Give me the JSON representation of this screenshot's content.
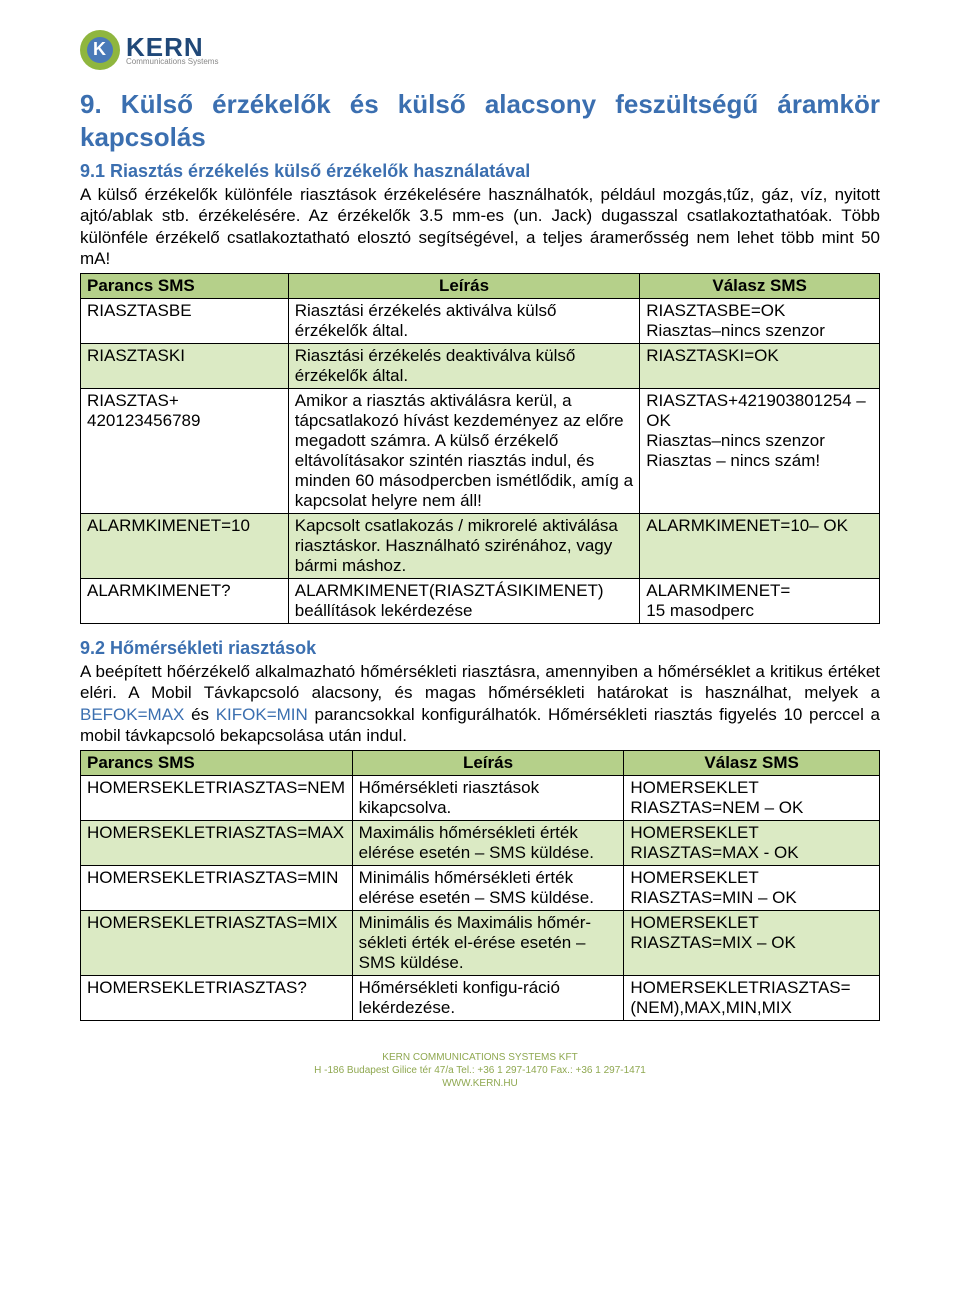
{
  "logo": {
    "name": "KERN",
    "tagline": "Communications Systems"
  },
  "section9": {
    "title": "9. Külső érzékelők és külső alacsony feszültségű áramkör kapcsolás",
    "sub1_title": "9.1 Riasztás érzékelés külső érzékelők használatával",
    "sub1_text": "A külső érzékelők különféle riasztások érzékelésére használhatók, például mozgás,tűz, gáz, víz, nyitott ajtó/ablak stb. érzékelésére. Az érzékelők 3.5 mm-es (un. Jack) dugasszal csatlakoztathatóak. Több különféle érzékelő csatlakoztatható elosztó segítségével, a teljes áramerősség nem lehet több mint 50 mA!",
    "table1": {
      "headers": [
        "Parancs SMS",
        "Leírás",
        "Válasz SMS"
      ],
      "col_widths": [
        "26%",
        "44%",
        "30%"
      ],
      "header_bg": "#b5d08a",
      "row_alt_bg": "#dbeac4",
      "rows": [
        {
          "cmd": "RIASZTASBE",
          "desc": "Riasztási érzékelés aktiválva külső érzékelők által.",
          "resp": "RIASZTASBE=OK\nRiasztas–nincs szenzor",
          "alt": false
        },
        {
          "cmd": "RIASZTASKI",
          "desc": "Riasztási érzékelés deaktiválva külső érzékelők által.",
          "resp": "RIASZTASKI=OK",
          "alt": true
        },
        {
          "cmd": "RIASZTAS+\n420123456789",
          "desc": "Amikor a riasztás aktiválásra kerül, a tápcsatlakozó hívást kezdeményez az előre megadott számra. A külső érzékelő eltávolításakor szintén riasztás indul, és minden 60 másodpercben ismétlődik, amíg a kapcsolat helyre nem áll!",
          "resp": "RIASZTAS+421903801254 – OK\nRiasztas–nincs szenzor\nRiasztas – nincs szám!",
          "alt": false
        },
        {
          "cmd": "ALARMKIMENET=10",
          "desc": "Kapcsolt csatlakozás / mikrorelé aktiválása riasztáskor. Használható szirénához, vagy bármi máshoz.",
          "resp": "ALARMKIMENET=10– OK",
          "alt": true
        },
        {
          "cmd": "ALARMKIMENET?",
          "desc": "ALARMKIMENET(RIASZTÁSIKIMENET) beállítások lekérdezése",
          "resp": "ALARMKIMENET=\n15 masodperc",
          "alt": false
        }
      ]
    },
    "sub2_title": "9.2 Hőmérsékleti riasztások",
    "sub2_text_a": "A beépített hőérzékelő alkalmazható hőmérsékleti riasztásra, amennyiben a hőmérséklet a kritikus értéket eléri. A  Mobil Távkapcsoló alacsony, és magas hőmérsékleti határokat is használhat, melyek a ",
    "sub2_kw1": "BEFOK=MAX",
    "sub2_text_b": " és ",
    "sub2_kw2": "KIFOK=MIN",
    "sub2_text_c": " parancsokkal konfigurálhatók. Hőmérsékleti  riasztás  figyelés 10 perccel a mobil távkapcsoló bekapcsolása után indul.",
    "table2": {
      "headers": [
        "Parancs SMS",
        "Leírás",
        "Válasz SMS"
      ],
      "col_widths": [
        "34%",
        "34%",
        "32%"
      ],
      "rows": [
        {
          "cmd": "HOMERSEKLETRIASZTAS=NEM",
          "desc": "Hőmérsékleti riasztások kikapcsolva.",
          "resp": "HOMERSEKLET RIASZTAS=NEM – OK",
          "alt": false
        },
        {
          "cmd": "HOMERSEKLETRIASZTAS=MAX",
          "desc": "Maximális hőmérsékleti érték elérése esetén – SMS küldése.",
          "resp": "HOMERSEKLET RIASZTAS=MAX - OK",
          "alt": true
        },
        {
          "cmd": "HOMERSEKLETRIASZTAS=MIN",
          "desc": "Minimális hőmérsékleti érték elérése esetén – SMS küldése.",
          "resp": "HOMERSEKLET RIASZTAS=MIN – OK",
          "alt": false
        },
        {
          "cmd": "HOMERSEKLETRIASZTAS=MIX",
          "desc": "Minimális és Maximális hőmér-sékleti érték el-érése esetén – SMS küldése.",
          "resp": "HOMERSEKLET RIASZTAS=MIX – OK",
          "alt": true
        },
        {
          "cmd": "HOMERSEKLETRIASZTAS?",
          "desc": "Hőmérsékleti konfigu-ráció lekérdezése.",
          "resp": "HOMERSEKLETRIASZTAS=\n(NEM),MAX,MIN,MIX",
          "alt": false
        }
      ]
    }
  },
  "footer": {
    "line1": "KERN COMMUNICATIONS SYSTEMS KFT",
    "line2": "H -186 Budapest Gilice tér 47/a Tel.: +36 1 297-1470 Fax.: +36 1 297-1471",
    "line3": "WWW.KERN.HU"
  }
}
